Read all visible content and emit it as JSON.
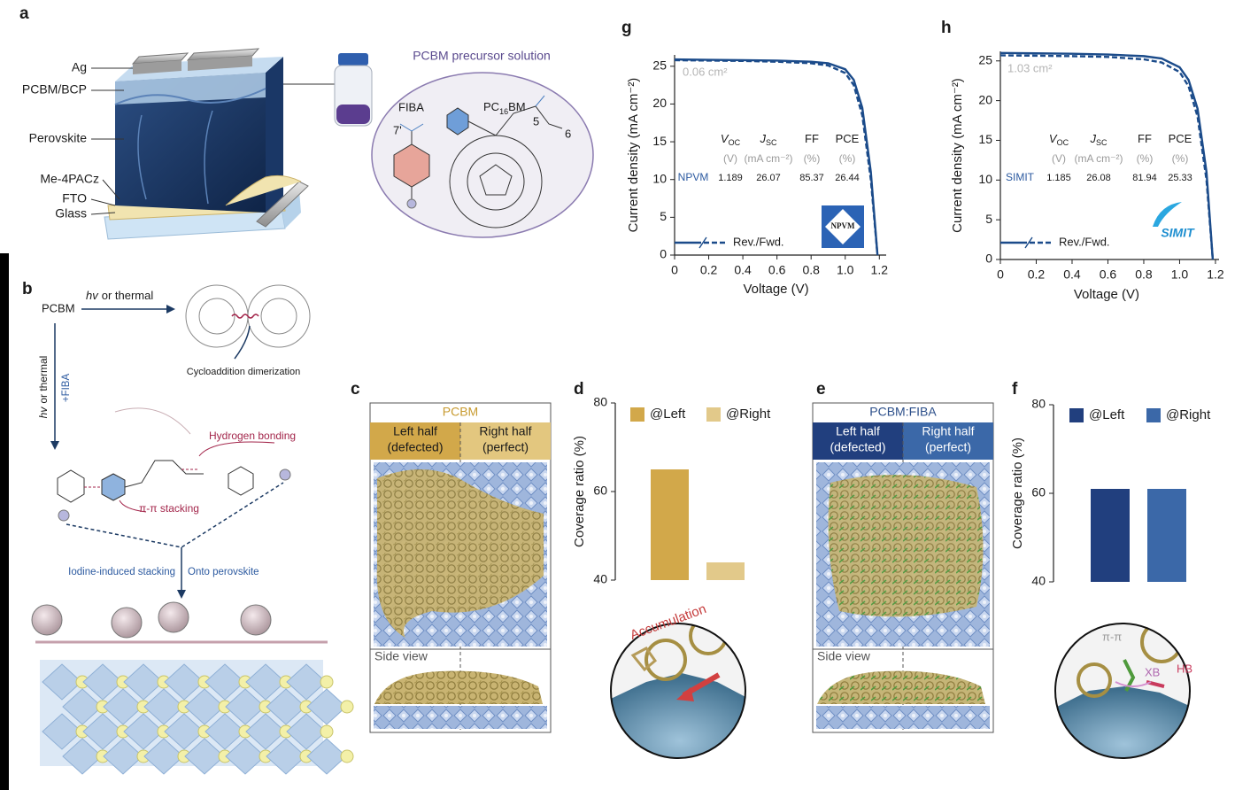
{
  "panel_labels": {
    "a": "a",
    "b": "b",
    "c": "c",
    "d": "d",
    "e": "e",
    "f": "f",
    "g": "g",
    "h": "h"
  },
  "panel_a": {
    "layers": [
      "Ag",
      "PCBM/BCP",
      "Perovskite",
      "Me-4PACz",
      "FTO",
      "Glass"
    ],
    "solution_title": "PCBM precursor solution",
    "fiba": "FIBA",
    "pcbm": {
      "main": "PC",
      "sub": "16",
      "tail": "BM"
    },
    "atom_labels": [
      "7'",
      "5",
      "6"
    ]
  },
  "panel_b": {
    "pcbm": "PCBM",
    "top_arrow": {
      "italic": "hv",
      "text": "or thermal"
    },
    "dimerization": "Cycloaddition dimerization",
    "side_arrow": {
      "italic": "hv",
      "text": "or thermal"
    },
    "fiba": "+FIBA",
    "hydrogen_bonding": "Hydrogen bonding",
    "pi_stacking": "π-π stacking",
    "iodine_stacking": "Iodine-induced stacking",
    "onto": "Onto perovskite"
  },
  "panel_c": {
    "title": "PCBM",
    "left": [
      "Left half",
      "(defected)"
    ],
    "right": [
      "Right half",
      "(perfect)"
    ],
    "side_view": "Side view"
  },
  "panel_d_inset": {
    "annotation": "Accumulation"
  },
  "panel_e": {
    "title": "PCBM:FIBA",
    "left": [
      "Left half",
      "(defected)"
    ],
    "right": [
      "Right half",
      "(perfect)"
    ],
    "side_view": "Side view"
  },
  "panel_f_inset": {
    "annotations": [
      "π-π",
      "XB",
      "HB"
    ]
  },
  "chart_data": [
    {
      "type": "line",
      "xlabel": "Voltage (V)",
      "ylabel": "Current density (mA cm⁻²)",
      "area": "0.06 cm²",
      "x": [
        0,
        0.2,
        0.4,
        0.6,
        0.8,
        0.9,
        1.0,
        1.05,
        1.1,
        1.15,
        1.189
      ],
      "series": [
        {
          "style": "solid",
          "color": "#1b4b8a",
          "values": [
            25.9,
            25.85,
            25.8,
            25.75,
            25.6,
            25.4,
            24.6,
            23.2,
            19.5,
            11,
            0
          ]
        },
        {
          "style": "dashed",
          "color": "#1b4b8a",
          "values": [
            25.8,
            25.75,
            25.7,
            25.6,
            25.4,
            25.1,
            24.1,
            22.5,
            18.5,
            10,
            0
          ]
        }
      ],
      "legend_label": "Rev./Fwd.",
      "xlim": [
        0,
        1.24
      ],
      "ylim": [
        0,
        26.5
      ],
      "xticks": [
        0,
        0.2,
        0.4,
        0.6,
        0.8,
        {
          "value": 1,
          "label": "1.0"
        },
        1.2
      ],
      "yticks": [
        0,
        5,
        10,
        15,
        20,
        25
      ],
      "table": {
        "columns": [
          {
            "main": "V",
            "sub": "OC"
          },
          {
            "main": "J",
            "sub": "SC"
          },
          {
            "main": "FF"
          },
          {
            "main": "PCE"
          }
        ],
        "units": [
          "(V)",
          "(mA cm⁻²)",
          "(%)",
          "(%)"
        ],
        "row_label": "NPVM",
        "row": [
          1.189,
          26.07,
          85.37,
          26.44
        ]
      },
      "logo": "NPVM"
    },
    {
      "type": "line",
      "xlabel": "Voltage (V)",
      "ylabel": "Current density (mA cm⁻²)",
      "area": "1.03 cm²",
      "x": [
        0,
        0.2,
        0.4,
        0.6,
        0.8,
        0.9,
        1.0,
        1.05,
        1.1,
        1.15,
        1.185
      ],
      "series": [
        {
          "style": "solid",
          "color": "#1b4b8a",
          "values": [
            26,
            25.95,
            25.9,
            25.8,
            25.6,
            25.3,
            24.2,
            22.6,
            19,
            11,
            0
          ]
        },
        {
          "style": "dashed",
          "color": "#1b4b8a",
          "values": [
            25.7,
            25.65,
            25.6,
            25.5,
            25.2,
            24.8,
            23.6,
            21.8,
            18,
            10,
            0
          ]
        }
      ],
      "legend_label": "Rev./Fwd.",
      "xlim": [
        0,
        1.22
      ],
      "ylim": [
        0,
        26.2
      ],
      "xticks": [
        0,
        0.2,
        0.4,
        0.6,
        0.8,
        {
          "value": 1,
          "label": "1.0"
        },
        1.2
      ],
      "yticks": [
        0,
        5,
        10,
        15,
        20,
        25
      ],
      "table": {
        "columns": [
          {
            "main": "V",
            "sub": "OC"
          },
          {
            "main": "J",
            "sub": "SC"
          },
          {
            "main": "FF"
          },
          {
            "main": "PCE"
          }
        ],
        "units": [
          "(V)",
          "(mA cm⁻²)",
          "(%)",
          "(%)"
        ],
        "row_label": "SIMIT",
        "row": [
          1.185,
          26.08,
          81.94,
          25.33
        ]
      },
      "logo": "SIMIT"
    },
    {
      "type": "bar",
      "ylabel": "Coverage ratio (%)",
      "series": [
        {
          "name": "@Left",
          "color": "#d2a84a",
          "values": [
            65
          ]
        },
        {
          "name": "@Right",
          "color": "#e2c98a",
          "values": [
            44
          ]
        }
      ],
      "ylim": [
        40,
        80
      ],
      "yticks": [
        40,
        60,
        80
      ]
    },
    {
      "type": "bar",
      "ylabel": "Coverage ratio (%)",
      "series": [
        {
          "name": "@Left",
          "color": "#213f7e",
          "values": [
            61
          ]
        },
        {
          "name": "@Right",
          "color": "#3b68a8",
          "values": [
            61
          ]
        }
      ],
      "ylim": [
        40,
        80
      ],
      "yticks": [
        40,
        60,
        80
      ]
    }
  ]
}
